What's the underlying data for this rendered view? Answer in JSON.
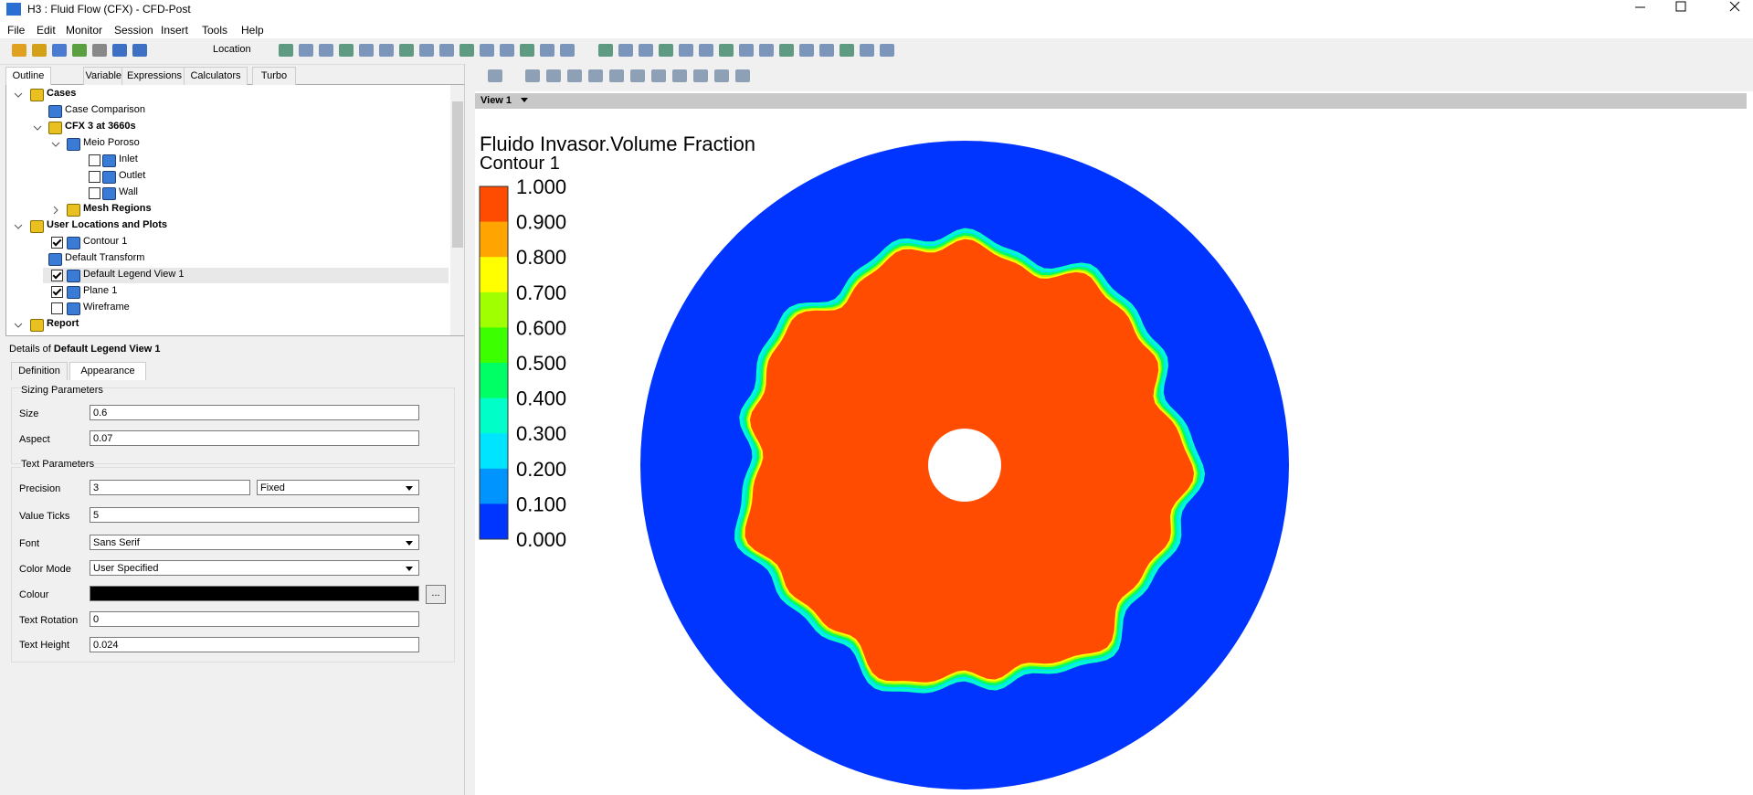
{
  "window": {
    "title": "H3 : Fluid Flow (CFX) - CFD-Post"
  },
  "menu": [
    "File",
    "Edit",
    "Monitor",
    "Session",
    "Insert",
    "Tools",
    "Help"
  ],
  "toolbar": {
    "location": "Location"
  },
  "outline_tabs": [
    "Outline",
    "Variables",
    "Expressions",
    "Calculators",
    "Turbo"
  ],
  "tree": [
    {
      "label": "Cases",
      "bold": true
    },
    {
      "label": "Case Comparison",
      "bold": false
    },
    {
      "label": "CFX 3 at 3660s",
      "bold": true
    },
    {
      "label": "Meio Poroso",
      "bold": false
    },
    {
      "label": "Inlet",
      "bold": false,
      "checked": false
    },
    {
      "label": "Outlet",
      "bold": false,
      "checked": false
    },
    {
      "label": "Wall",
      "bold": false,
      "checked": false
    },
    {
      "label": "Mesh Regions",
      "bold": true
    },
    {
      "label": "User Locations and Plots",
      "bold": true
    },
    {
      "label": "Contour 1",
      "bold": false,
      "checked": true
    },
    {
      "label": "Default Transform",
      "bold": false
    },
    {
      "label": "Default Legend View 1",
      "bold": false,
      "checked": true
    },
    {
      "label": "Plane 1",
      "bold": false,
      "checked": true
    },
    {
      "label": "Wireframe",
      "bold": false,
      "checked": false
    },
    {
      "label": "Report",
      "bold": true
    }
  ],
  "details": {
    "prefix": "Details of",
    "object": "Default Legend View 1",
    "tabs": [
      "Definition",
      "Appearance"
    ],
    "sizing": {
      "title": "Sizing Parameters",
      "size_label": "Size",
      "size": "0.6",
      "aspect_label": "Aspect",
      "aspect": "0.07"
    },
    "text": {
      "title": "Text Parameters",
      "precision_label": "Precision",
      "precision": "3",
      "precision_mode": "Fixed",
      "ticks_label": "Value Ticks",
      "ticks": "5",
      "font_label": "Font",
      "font": "Sans Serif",
      "color_mode_label": "Color Mode",
      "color_mode": "User Specified",
      "colour_label": "Colour",
      "colour": "#000000",
      "colour_button": "...",
      "rotation_label": "Text Rotation",
      "rotation": "0",
      "height_label": "Text Height",
      "height": "0.024"
    }
  },
  "view": {
    "name": "View 1",
    "legend": {
      "title": "Fluido Invasor.Volume Fraction",
      "subtitle": "Contour 1",
      "labels": [
        "1.000",
        "0.900",
        "0.800",
        "0.700",
        "0.600",
        "0.500",
        "0.400",
        "0.300",
        "0.200",
        "0.100",
        "0.000"
      ],
      "colors": [
        "#ff4c00",
        "#ffa400",
        "#ffff00",
        "#a0ff00",
        "#3cff00",
        "#00ff64",
        "#00ffc8",
        "#00e4ff",
        "#0094ff",
        "#0034ff"
      ]
    }
  }
}
